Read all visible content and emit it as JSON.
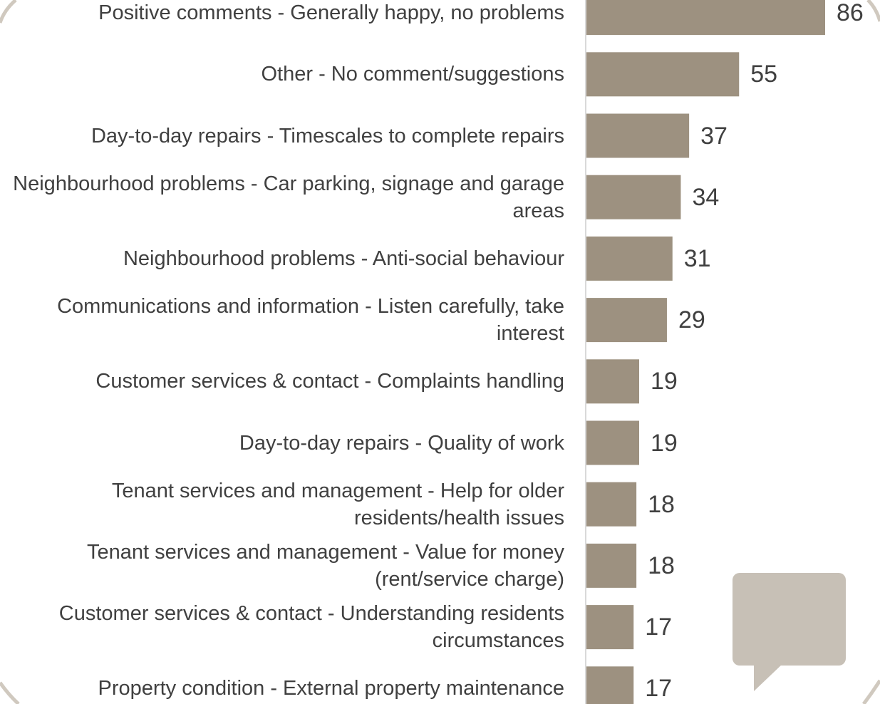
{
  "chart_data": {
    "type": "bar",
    "orientation": "horizontal",
    "categories": [
      "Positive comments - Generally happy, no problems",
      "Other - No comment/suggestions",
      "Day-to-day repairs - Timescales to complete repairs",
      "Neighbourhood problems - Car parking, signage and garage areas",
      "Neighbourhood problems - Anti-social behaviour",
      "Communications and information - Listen carefully, take interest",
      "Customer services & contact - Complaints handling",
      "Day-to-day repairs - Quality of work",
      "Tenant services and management - Help for older residents/health issues",
      "Tenant services and management - Value for money (rent/service charge)",
      "Customer services & contact - Understanding residents circumstances",
      "Property condition - External property maintenance"
    ],
    "values": [
      86,
      55,
      37,
      34,
      31,
      29,
      19,
      19,
      18,
      18,
      17,
      17
    ],
    "data_labels": [
      "86",
      "55",
      "37",
      "34",
      "31",
      "29",
      "19",
      "19",
      "18",
      "18",
      "17",
      "17"
    ],
    "title": "",
    "xlabel": "",
    "ylabel": "",
    "xlim": [
      0,
      86
    ],
    "grid": false,
    "legend": "none",
    "colors": {
      "bar": "#9d9180",
      "axis": "#d9d9d9",
      "text": "#404040",
      "speech_bubble": "#c7c0b6",
      "frame": "#d0c9bf"
    }
  }
}
